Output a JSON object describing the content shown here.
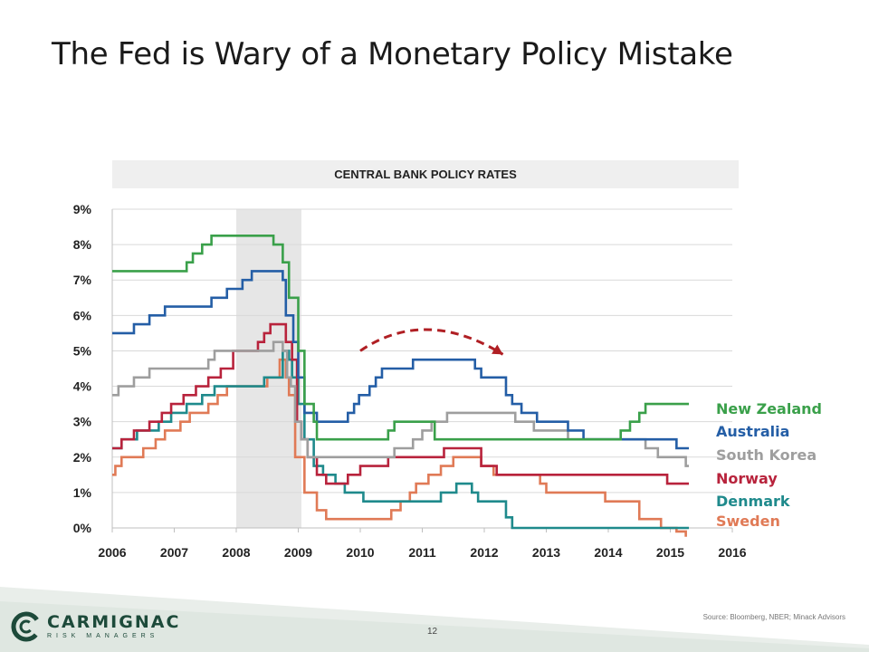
{
  "slide": {
    "title": "The Fed is Wary of a Monetary Policy Mistake",
    "page_number": "12",
    "source": "Source: Bloomberg, NBER; Minack Advisors"
  },
  "logo": {
    "name": "CARMIGNAC",
    "subtitle": "RISK MANAGERS",
    "color": "#1d4a3a"
  },
  "chart_data": {
    "type": "line",
    "title": "CENTRAL BANK POLICY RATES",
    "xlabel": "",
    "ylabel": "",
    "xlim": [
      2006,
      2016
    ],
    "ylim": [
      0,
      9
    ],
    "x_ticks": [
      "2006",
      "2007",
      "2008",
      "2009",
      "2010",
      "2011",
      "2012",
      "2013",
      "2014",
      "2015",
      "2016"
    ],
    "y_ticks": [
      "0%",
      "1%",
      "2%",
      "3%",
      "4%",
      "5%",
      "6%",
      "7%",
      "8%",
      "9%"
    ],
    "recession_band": [
      2008.0,
      2009.05
    ],
    "arrow": {
      "from": [
        2010.0,
        5.0
      ],
      "via": [
        2011.1,
        5.6
      ],
      "to": [
        2012.3,
        4.9
      ],
      "color": "#b01f24"
    },
    "legend_position": "right",
    "series": [
      {
        "name": "New Zealand",
        "color": "#3aa04a",
        "step": true,
        "points": [
          [
            2006.0,
            7.25
          ],
          [
            2007.2,
            7.5
          ],
          [
            2007.3,
            7.75
          ],
          [
            2007.45,
            8.0
          ],
          [
            2007.6,
            8.25
          ],
          [
            2008.6,
            8.0
          ],
          [
            2008.75,
            7.5
          ],
          [
            2008.85,
            6.5
          ],
          [
            2009.0,
            5.0
          ],
          [
            2009.1,
            3.5
          ],
          [
            2009.25,
            3.0
          ],
          [
            2009.3,
            2.5
          ],
          [
            2010.45,
            2.75
          ],
          [
            2010.55,
            3.0
          ],
          [
            2011.2,
            2.5
          ],
          [
            2014.2,
            2.75
          ],
          [
            2014.35,
            3.0
          ],
          [
            2014.5,
            3.25
          ],
          [
            2014.6,
            3.5
          ],
          [
            2015.3,
            3.5
          ]
        ]
      },
      {
        "name": "Australia",
        "color": "#245ea6",
        "step": true,
        "points": [
          [
            2006.0,
            5.5
          ],
          [
            2006.35,
            5.75
          ],
          [
            2006.6,
            6.0
          ],
          [
            2006.85,
            6.25
          ],
          [
            2007.6,
            6.5
          ],
          [
            2007.85,
            6.75
          ],
          [
            2008.1,
            7.0
          ],
          [
            2008.25,
            7.25
          ],
          [
            2008.75,
            7.0
          ],
          [
            2008.8,
            6.0
          ],
          [
            2008.92,
            5.25
          ],
          [
            2009.0,
            4.25
          ],
          [
            2009.1,
            3.25
          ],
          [
            2009.3,
            3.0
          ],
          [
            2009.8,
            3.25
          ],
          [
            2009.9,
            3.5
          ],
          [
            2009.98,
            3.75
          ],
          [
            2010.15,
            4.0
          ],
          [
            2010.25,
            4.25
          ],
          [
            2010.35,
            4.5
          ],
          [
            2010.85,
            4.75
          ],
          [
            2011.85,
            4.5
          ],
          [
            2011.95,
            4.25
          ],
          [
            2012.35,
            3.75
          ],
          [
            2012.45,
            3.5
          ],
          [
            2012.6,
            3.25
          ],
          [
            2012.85,
            3.0
          ],
          [
            2013.35,
            2.75
          ],
          [
            2013.6,
            2.5
          ],
          [
            2015.1,
            2.25
          ],
          [
            2015.3,
            2.25
          ]
        ]
      },
      {
        "name": "South Korea",
        "color": "#9e9e9e",
        "step": true,
        "points": [
          [
            2006.0,
            3.75
          ],
          [
            2006.1,
            4.0
          ],
          [
            2006.35,
            4.25
          ],
          [
            2006.6,
            4.5
          ],
          [
            2007.55,
            4.75
          ],
          [
            2007.65,
            5.0
          ],
          [
            2008.6,
            5.25
          ],
          [
            2008.75,
            5.0
          ],
          [
            2008.82,
            4.25
          ],
          [
            2008.88,
            4.0
          ],
          [
            2008.95,
            3.0
          ],
          [
            2009.05,
            2.5
          ],
          [
            2009.15,
            2.0
          ],
          [
            2010.55,
            2.25
          ],
          [
            2010.85,
            2.5
          ],
          [
            2011.0,
            2.75
          ],
          [
            2011.15,
            3.0
          ],
          [
            2011.4,
            3.25
          ],
          [
            2012.5,
            3.0
          ],
          [
            2012.8,
            2.75
          ],
          [
            2013.35,
            2.5
          ],
          [
            2014.6,
            2.25
          ],
          [
            2014.8,
            2.0
          ],
          [
            2015.25,
            1.75
          ],
          [
            2015.3,
            1.75
          ]
        ]
      },
      {
        "name": "Norway",
        "color": "#b8233c",
        "step": true,
        "points": [
          [
            2006.0,
            2.25
          ],
          [
            2006.15,
            2.5
          ],
          [
            2006.35,
            2.75
          ],
          [
            2006.6,
            3.0
          ],
          [
            2006.8,
            3.25
          ],
          [
            2006.95,
            3.5
          ],
          [
            2007.15,
            3.75
          ],
          [
            2007.35,
            4.0
          ],
          [
            2007.55,
            4.25
          ],
          [
            2007.75,
            4.5
          ],
          [
            2007.95,
            5.0
          ],
          [
            2008.35,
            5.25
          ],
          [
            2008.45,
            5.5
          ],
          [
            2008.55,
            5.75
          ],
          [
            2008.8,
            5.25
          ],
          [
            2008.9,
            4.75
          ],
          [
            2008.98,
            3.0
          ],
          [
            2009.05,
            2.5
          ],
          [
            2009.15,
            2.0
          ],
          [
            2009.3,
            1.5
          ],
          [
            2009.45,
            1.25
          ],
          [
            2009.8,
            1.5
          ],
          [
            2010.0,
            1.75
          ],
          [
            2010.45,
            2.0
          ],
          [
            2011.35,
            2.25
          ],
          [
            2011.95,
            1.75
          ],
          [
            2012.2,
            1.5
          ],
          [
            2014.95,
            1.25
          ],
          [
            2015.3,
            1.25
          ]
        ]
      },
      {
        "name": "Denmark",
        "color": "#1f8a8c",
        "step": true,
        "points": [
          [
            2006.0,
            2.25
          ],
          [
            2006.15,
            2.5
          ],
          [
            2006.4,
            2.75
          ],
          [
            2006.75,
            3.0
          ],
          [
            2006.95,
            3.25
          ],
          [
            2007.2,
            3.5
          ],
          [
            2007.45,
            3.75
          ],
          [
            2007.65,
            4.0
          ],
          [
            2008.45,
            4.25
          ],
          [
            2008.75,
            5.0
          ],
          [
            2008.85,
            4.75
          ],
          [
            2008.9,
            4.25
          ],
          [
            2009.0,
            3.5
          ],
          [
            2009.1,
            2.5
          ],
          [
            2009.25,
            1.75
          ],
          [
            2009.4,
            1.5
          ],
          [
            2009.6,
            1.25
          ],
          [
            2009.75,
            1.0
          ],
          [
            2010.05,
            0.75
          ],
          [
            2011.3,
            1.0
          ],
          [
            2011.55,
            1.25
          ],
          [
            2011.8,
            1.0
          ],
          [
            2011.9,
            0.75
          ],
          [
            2012.35,
            0.3
          ],
          [
            2012.45,
            0.0
          ],
          [
            2015.3,
            0.0
          ]
        ]
      },
      {
        "name": "Sweden",
        "color": "#e07a56",
        "step": true,
        "points": [
          [
            2006.0,
            1.5
          ],
          [
            2006.05,
            1.75
          ],
          [
            2006.15,
            2.0
          ],
          [
            2006.5,
            2.25
          ],
          [
            2006.7,
            2.5
          ],
          [
            2006.85,
            2.75
          ],
          [
            2007.1,
            3.0
          ],
          [
            2007.25,
            3.25
          ],
          [
            2007.55,
            3.5
          ],
          [
            2007.7,
            3.75
          ],
          [
            2007.85,
            4.0
          ],
          [
            2008.5,
            4.25
          ],
          [
            2008.7,
            4.75
          ],
          [
            2008.8,
            4.25
          ],
          [
            2008.85,
            3.75
          ],
          [
            2008.95,
            2.0
          ],
          [
            2009.1,
            1.0
          ],
          [
            2009.3,
            0.5
          ],
          [
            2009.45,
            0.25
          ],
          [
            2010.5,
            0.5
          ],
          [
            2010.65,
            0.75
          ],
          [
            2010.8,
            1.0
          ],
          [
            2010.9,
            1.25
          ],
          [
            2011.1,
            1.5
          ],
          [
            2011.3,
            1.75
          ],
          [
            2011.5,
            2.0
          ],
          [
            2011.95,
            1.75
          ],
          [
            2012.15,
            1.5
          ],
          [
            2012.9,
            1.25
          ],
          [
            2013.0,
            1.0
          ],
          [
            2013.95,
            0.75
          ],
          [
            2014.5,
            0.25
          ],
          [
            2014.85,
            0.0
          ],
          [
            2015.1,
            -0.1
          ],
          [
            2015.25,
            -0.25
          ]
        ]
      }
    ]
  },
  "legend": {
    "items": [
      {
        "label": "New Zealand",
        "color": "#3aa04a"
      },
      {
        "label": "Australia",
        "color": "#245ea6"
      },
      {
        "label": "South Korea",
        "color": "#9e9e9e"
      },
      {
        "label": "Norway",
        "color": "#b8233c"
      },
      {
        "label": "Denmark",
        "color": "#1f8a8c"
      },
      {
        "label": "Sweden",
        "color": "#e07a56"
      }
    ]
  }
}
